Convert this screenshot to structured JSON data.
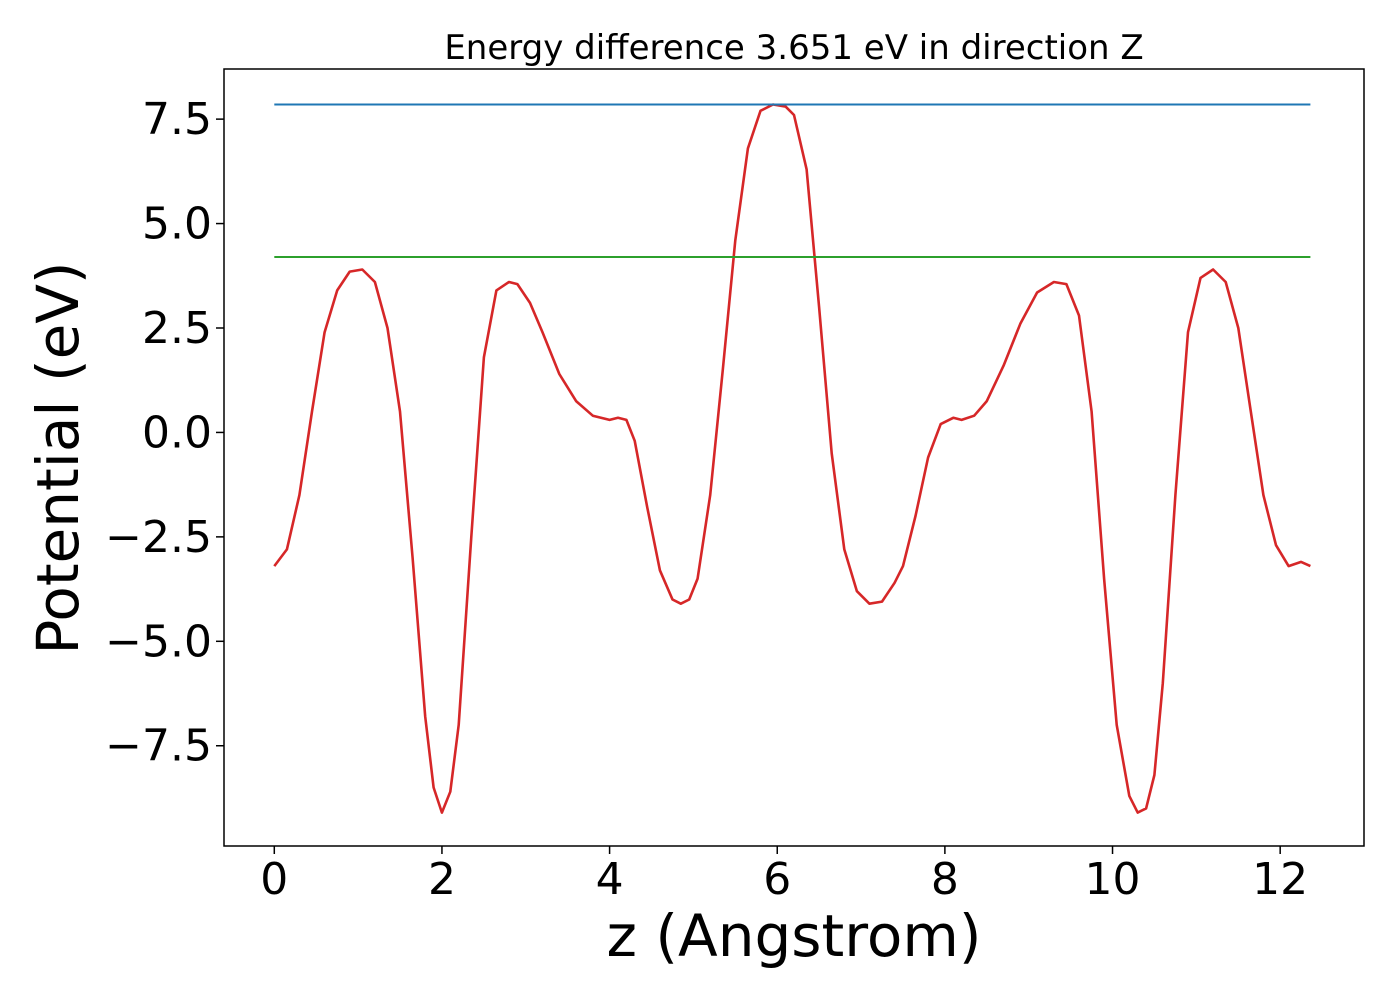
{
  "chart_data": {
    "type": "line",
    "title": "Energy difference 3.651 eV in direction Z",
    "xlabel": "z (Angstrom)",
    "ylabel": "Potential (eV)",
    "xlim": [
      -0.6,
      13.0
    ],
    "ylim": [
      -9.9,
      8.7
    ],
    "xticks": [
      0,
      2,
      4,
      6,
      8,
      10,
      12
    ],
    "xtick_labels": [
      "0",
      "2",
      "4",
      "6",
      "8",
      "10",
      "12"
    ],
    "yticks": [
      -7.5,
      -5.0,
      -2.5,
      0.0,
      2.5,
      5.0,
      7.5
    ],
    "ytick_labels": [
      "−7.5",
      "−5.0",
      "−2.5",
      "0.0",
      "2.5",
      "5.0",
      "7.5"
    ],
    "grid": false,
    "series": [
      {
        "color": "#d62728",
        "x": [
          0.0,
          0.15,
          0.3,
          0.45,
          0.6,
          0.75,
          0.9,
          1.05,
          1.2,
          1.35,
          1.5,
          1.65,
          1.8,
          1.9,
          2.0,
          2.1,
          2.2,
          2.35,
          2.5,
          2.65,
          2.8,
          2.9,
          3.05,
          3.2,
          3.4,
          3.6,
          3.8,
          4.0,
          4.1,
          4.2,
          4.3,
          4.45,
          4.6,
          4.75,
          4.85,
          4.95,
          5.05,
          5.2,
          5.35,
          5.5,
          5.65,
          5.8,
          5.95,
          6.1,
          6.2,
          6.35,
          6.5,
          6.65,
          6.8,
          6.95,
          7.1,
          7.25,
          7.4,
          7.5,
          7.65,
          7.8,
          7.95,
          8.1,
          8.2,
          8.35,
          8.5,
          8.7,
          8.9,
          9.1,
          9.3,
          9.45,
          9.6,
          9.75,
          9.9,
          10.05,
          10.2,
          10.3,
          10.4,
          10.5,
          10.6,
          10.75,
          10.9,
          11.05,
          11.2,
          11.35,
          11.5,
          11.65,
          11.8,
          11.95,
          12.1,
          12.25,
          12.36
        ],
        "y": [
          -3.2,
          -2.8,
          -1.5,
          0.5,
          2.4,
          3.4,
          3.85,
          3.9,
          3.6,
          2.5,
          0.5,
          -3.0,
          -6.8,
          -8.5,
          -9.1,
          -8.6,
          -7.0,
          -2.5,
          1.8,
          3.4,
          3.6,
          3.55,
          3.1,
          2.4,
          1.4,
          0.75,
          0.4,
          0.3,
          0.35,
          0.3,
          -0.2,
          -1.8,
          -3.3,
          -4.0,
          -4.1,
          -4.0,
          -3.5,
          -1.5,
          1.5,
          4.6,
          6.8,
          7.7,
          7.85,
          7.8,
          7.6,
          6.3,
          3.0,
          -0.5,
          -2.8,
          -3.8,
          -4.1,
          -4.05,
          -3.6,
          -3.2,
          -2.0,
          -0.6,
          0.2,
          0.35,
          0.3,
          0.4,
          0.75,
          1.6,
          2.6,
          3.35,
          3.6,
          3.55,
          2.8,
          0.5,
          -3.5,
          -7.0,
          -8.7,
          -9.1,
          -9.0,
          -8.2,
          -6.0,
          -1.5,
          2.4,
          3.7,
          3.9,
          3.6,
          2.5,
          0.5,
          -1.5,
          -2.7,
          -3.2,
          -3.1,
          -3.2
        ]
      },
      {
        "color": "#1f77b4",
        "x": [
          0.0,
          12.36
        ],
        "y": [
          7.85,
          7.85
        ]
      },
      {
        "color": "#2ca02c",
        "x": [
          0.0,
          12.36
        ],
        "y": [
          4.2,
          4.2
        ]
      }
    ]
  }
}
